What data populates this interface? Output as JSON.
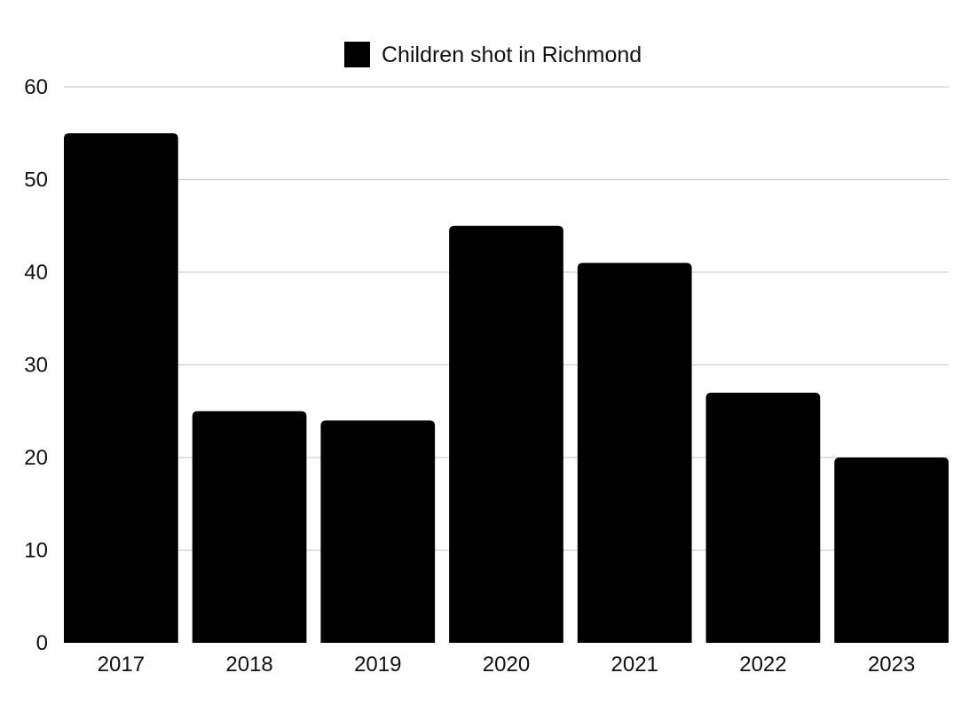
{
  "chart_data": {
    "type": "bar",
    "title": "",
    "xlabel": "",
    "ylabel": "",
    "categories": [
      "2017",
      "2018",
      "2019",
      "2020",
      "2021",
      "2022",
      "2023"
    ],
    "series": [
      {
        "name": "Children shot in Richmond",
        "values": [
          55,
          25,
          24,
          45,
          41,
          27,
          20
        ],
        "color": "#000000"
      }
    ],
    "ylim": [
      0,
      60
    ],
    "yticks": [
      "0",
      "10",
      "20",
      "30",
      "40",
      "50",
      "60"
    ],
    "grid": true,
    "legend_position": "top-center"
  },
  "colors": {
    "bar": "#000000",
    "grid": "#cfcfcf",
    "text": "#111111"
  }
}
